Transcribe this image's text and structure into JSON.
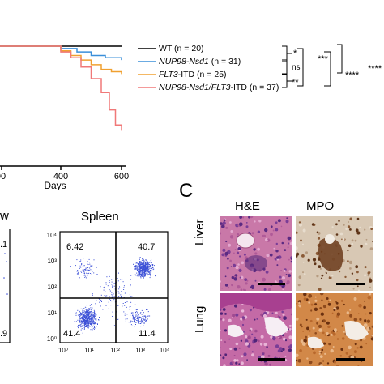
{
  "survival": {
    "x_axis_label": "Days",
    "x_ticks": [
      "00",
      "400",
      "600"
    ],
    "legend": [
      {
        "prefix": "",
        "italic": "",
        "text": "WT (n = 20)",
        "color": "#000000"
      },
      {
        "prefix": "",
        "italic": "NUP98-Nsd1",
        "text": " (n = 31)",
        "color": "#3a8fd9"
      },
      {
        "prefix": "",
        "italic": "FLT3",
        "text": "-ITD (n = 25)",
        "color": "#f0a030"
      },
      {
        "prefix": "",
        "italic": "NUP98-Nsd1/FLT3",
        "text": "-ITD (n = 37)",
        "color": "#f07878"
      }
    ],
    "significance": [
      "*",
      "ns",
      "**",
      "***",
      "****",
      "****"
    ]
  },
  "flow": {
    "left_title_partial": "w",
    "left_values": [
      ".1",
      ".9"
    ],
    "spleen_title": "Spleen",
    "quadrants": {
      "top_left": "6.42",
      "top_right": "40.7",
      "bottom_left": "41.4",
      "bottom_right": "11.4"
    },
    "y_ticks": [
      "10⁴",
      "10³",
      "10²",
      "10¹",
      "10⁰"
    ],
    "x_ticks": [
      "10⁰",
      "10¹",
      "10²",
      "10³",
      "10⁴"
    ],
    "point_color": "#3b4fd6"
  },
  "panel_c": {
    "letter": "C",
    "col_he": "H&E",
    "col_mpo": "MPO",
    "row_liver": "Liver",
    "row_lung": "Lung"
  },
  "chart_data": {
    "type": "line",
    "title": "",
    "xlabel": "Days",
    "ylabel": "",
    "xlim": [
      0,
      620
    ],
    "series": [
      {
        "name": "WT (n = 20)",
        "x": [
          0,
          600
        ],
        "y": [
          100,
          100
        ]
      },
      {
        "name": "NUP98-Nsd1 (n = 31)",
        "x": [
          0,
          300,
          380,
          450,
          520,
          600
        ],
        "y": [
          100,
          98,
          95,
          92,
          90,
          88
        ]
      },
      {
        "name": "FLT3-ITD (n = 25)",
        "x": [
          0,
          300,
          350,
          400,
          450,
          500,
          550,
          600
        ],
        "y": [
          100,
          96,
          92,
          88,
          84,
          80,
          78,
          76
        ]
      },
      {
        "name": "NUP98-Nsd1/FLT3-ITD (n = 37)",
        "x": [
          0,
          300,
          350,
          400,
          450,
          500,
          540,
          570,
          600
        ],
        "y": [
          100,
          95,
          90,
          82,
          72,
          60,
          45,
          32,
          27
        ]
      }
    ]
  }
}
